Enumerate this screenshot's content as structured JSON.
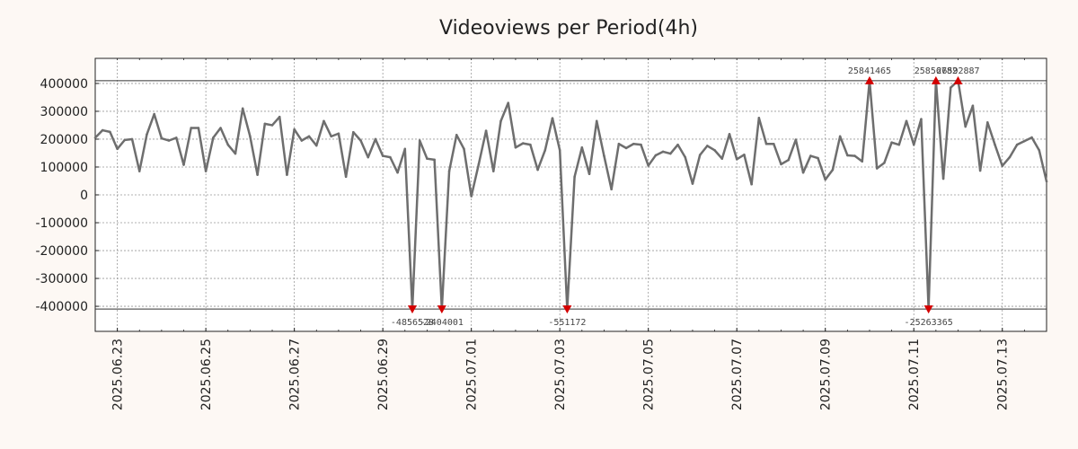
{
  "chart_data": {
    "type": "line",
    "title": "Videoviews per Period(4h)",
    "xlabel": "",
    "ylabel": "",
    "grid": true,
    "period_hours": 4,
    "x_start": "2025.06.22 12:00",
    "ylim": [
      -490000,
      490000
    ],
    "clip_limits": [
      -410000,
      410000
    ],
    "y_ticks": [
      400000,
      300000,
      200000,
      100000,
      0,
      -100000,
      -200000,
      -300000,
      -400000
    ],
    "x_ticks": [
      "2025.06.23",
      "2025.06.25",
      "2025.06.27",
      "2025.06.29",
      "2025.07.01",
      "2025.07.03",
      "2025.07.05",
      "2025.07.07",
      "2025.07.09",
      "2025.07.11",
      "2025.07.13"
    ],
    "series": [
      {
        "name": "Videoviews",
        "color": "#6e6e6e",
        "values": [
          205000,
          232000,
          226000,
          165000,
          197000,
          200000,
          85000,
          217000,
          290000,
          203000,
          195000,
          205000,
          108000,
          240000,
          240000,
          85000,
          205000,
          240000,
          180000,
          148000,
          310000,
          210000,
          72000,
          255000,
          250000,
          280000,
          72000,
          235000,
          195000,
          210000,
          177000,
          265000,
          210000,
          220000,
          65000,
          225000,
          195000,
          135000,
          200000,
          140000,
          135000,
          80000,
          165000,
          -410000,
          195000,
          130000,
          126000,
          -410000,
          85000,
          215000,
          165000,
          -5000,
          110000,
          230000,
          85000,
          265000,
          330000,
          170000,
          185000,
          180000,
          90000,
          160000,
          275000,
          160000,
          -410000,
          65000,
          170000,
          75000,
          265000,
          140000,
          20000,
          183000,
          168000,
          183000,
          180000,
          105000,
          142000,
          155000,
          148000,
          180000,
          135000,
          40000,
          143000,
          176000,
          160000,
          130000,
          218000,
          128000,
          144000,
          38000,
          276000,
          183000,
          183000,
          110000,
          125000,
          198000,
          80000,
          140000,
          132000,
          55000,
          90000,
          210000,
          142000,
          140000,
          120000,
          410000,
          95000,
          115000,
          188000,
          180000,
          265000,
          180000,
          272000,
          -410000,
          410000,
          58000,
          385000,
          410000,
          245000,
          320000,
          87000,
          260000,
          180000,
          104000,
          135000,
          180000,
          193000,
          206000,
          160000,
          48000
        ]
      }
    ],
    "annotations": [
      {
        "label": "-4856528",
        "index": 43,
        "value": -410000,
        "direction": "down"
      },
      {
        "label": "-2404001",
        "index": 47,
        "value": -410000,
        "direction": "down"
      },
      {
        "label": "-551172",
        "index": 64,
        "value": -410000,
        "direction": "down"
      },
      {
        "label": "25841465",
        "index": 105,
        "value": 410000,
        "direction": "up"
      },
      {
        "label": "-25263365",
        "index": 113,
        "value": -410000,
        "direction": "down"
      },
      {
        "label": "25856782",
        "index": 114,
        "value": 410000,
        "direction": "up"
      },
      {
        "label": "26592887",
        "index": 117,
        "value": 410000,
        "direction": "up"
      }
    ],
    "marker_color": "#d40000"
  }
}
